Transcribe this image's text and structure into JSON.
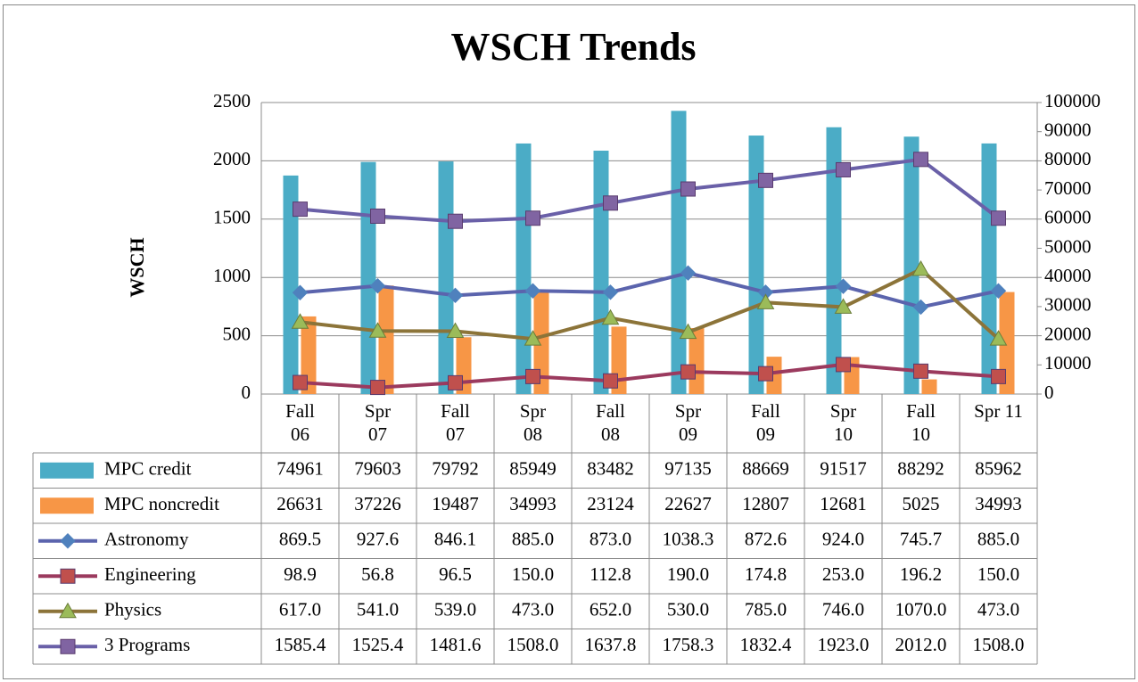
{
  "chart_data": {
    "type": "combo",
    "title": "WSCH Trends",
    "y_label": "WSCH",
    "categories": [
      "Fall 06",
      "Spr 07",
      "Fall 07",
      "Spr 08",
      "Fall 08",
      "Spr 09",
      "Fall 09",
      "Spr 10",
      "Fall 10",
      "Spr 11"
    ],
    "ylim": [
      0,
      2500
    ],
    "yticks": [
      0,
      500,
      1000,
      1500,
      2000,
      2500
    ],
    "y2lim": [
      0,
      100000
    ],
    "y2ticks": [
      0,
      10000,
      20000,
      30000,
      40000,
      50000,
      60000,
      70000,
      80000,
      90000,
      100000
    ],
    "grid": true,
    "data_table": true,
    "series": [
      {
        "name": "MPC credit",
        "type": "bar",
        "axis": "y2",
        "color": "#4bacc6",
        "values": [
          74961,
          79603,
          79792,
          85949,
          83482,
          97135,
          88669,
          91517,
          88292,
          85962
        ]
      },
      {
        "name": "MPC noncredit",
        "type": "bar",
        "axis": "y2",
        "color": "#f79646",
        "values": [
          26631,
          37226,
          19487,
          34993,
          23124,
          22627,
          12807,
          12681,
          5025,
          34993
        ]
      },
      {
        "name": "Astronomy",
        "type": "line",
        "color": "#5b64ad",
        "marker": "diamond",
        "marker_color": "#4f81bd",
        "values": [
          869.5,
          927.6,
          846.1,
          885.0,
          873.0,
          1038.3,
          872.6,
          924.0,
          745.7,
          885.0
        ],
        "value_labels": [
          "869.5",
          "927.6",
          "846.1",
          "885.0",
          "873.0",
          "1038.3",
          "872.6",
          "924.0",
          "745.7",
          "885.0"
        ]
      },
      {
        "name": "Engineering",
        "type": "line",
        "color": "#9b3a5e",
        "marker": "square",
        "marker_color": "#c0504d",
        "values": [
          98.9,
          56.8,
          96.5,
          150.0,
          112.8,
          190.0,
          174.8,
          253.0,
          196.2,
          150.0
        ],
        "value_labels": [
          "98.9",
          "56.8",
          "96.5",
          "150.0",
          "112.8",
          "190.0",
          "174.8",
          "253.0",
          "196.2",
          "150.0"
        ]
      },
      {
        "name": "Physics",
        "type": "line",
        "color": "#8c7439",
        "marker": "triangle",
        "marker_color": "#9bbb59",
        "values": [
          617.0,
          541.0,
          539.0,
          473.0,
          652.0,
          530.0,
          785.0,
          746.0,
          1070.0,
          473.0
        ],
        "value_labels": [
          "617.0",
          "541.0",
          "539.0",
          "473.0",
          "652.0",
          "530.0",
          "785.0",
          "746.0",
          "1070.0",
          "473.0"
        ]
      },
      {
        "name": "3 Programs",
        "type": "line",
        "color": "#6a60a8",
        "marker": "square",
        "marker_color": "#8064a2",
        "values": [
          1585.4,
          1525.4,
          1481.6,
          1508.0,
          1637.8,
          1758.3,
          1832.4,
          1923.0,
          2012.0,
          1508.0
        ],
        "value_labels": [
          "1585.4",
          "1525.4",
          "1481.6",
          "1508.0",
          "1637.8",
          "1758.3",
          "1832.4",
          "1923.0",
          "2012.0",
          "1508.0"
        ]
      }
    ]
  }
}
